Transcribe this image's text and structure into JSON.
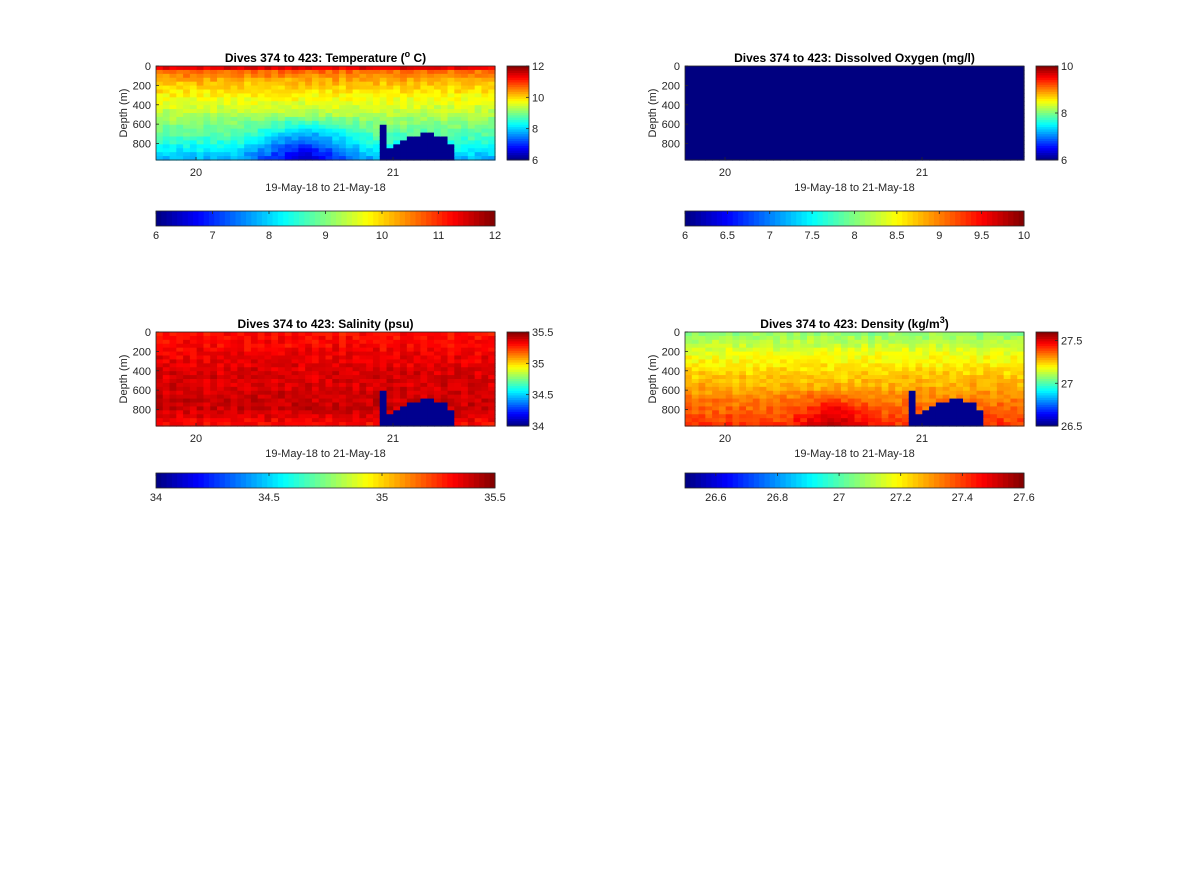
{
  "figure": {
    "panels": [
      {
        "title": "Dives 374 to 423: Temperature (° C)",
        "title_parts": {
          "pre": "Dives 374 to 423: Temperature (",
          "sup": "o",
          "post": " C)"
        },
        "ylabel": "Depth (m)",
        "yticks": [
          "0",
          "200",
          "400",
          "600",
          "800"
        ],
        "xticks": [
          "20",
          "21"
        ],
        "xlabel": "19-May-18 to 21-May-18",
        "cbar_ticks": [
          "12",
          "10",
          "8",
          "6"
        ],
        "hbar_ticks": [
          "6",
          "7",
          "8",
          "9",
          "10",
          "11",
          "12"
        ]
      },
      {
        "title": "Dives 374 to 423: Dissolved Oxygen (mg/l)",
        "title_parts": {
          "pre": "Dives 374 to 423: Dissolved Oxygen (mg/l)",
          "sup": "",
          "post": ""
        },
        "ylabel": "Depth (m)",
        "yticks": [
          "0",
          "200",
          "400",
          "600",
          "800"
        ],
        "xticks": [
          "20",
          "21"
        ],
        "xlabel": "19-May-18 to 21-May-18",
        "cbar_ticks": [
          "10",
          "8",
          "6"
        ],
        "hbar_ticks": [
          "6",
          "6.5",
          "7",
          "7.5",
          "8",
          "8.5",
          "9",
          "9.5",
          "10"
        ]
      },
      {
        "title": "Dives 374 to 423: Salinity (psu)",
        "title_parts": {
          "pre": "Dives 374 to 423: Salinity (psu)",
          "sup": "",
          "post": ""
        },
        "ylabel": "Depth (m)",
        "yticks": [
          "0",
          "200",
          "400",
          "600",
          "800"
        ],
        "xticks": [
          "20",
          "21"
        ],
        "xlabel": "19-May-18 to 21-May-18",
        "cbar_ticks": [
          "35.5",
          "35",
          "34.5",
          "34"
        ],
        "hbar_ticks": [
          "34",
          "34.5",
          "35",
          "35.5"
        ]
      },
      {
        "title": "Dives 374 to 423: Density (kg/m3)",
        "title_parts": {
          "pre": "Dives 374 to 423: Density (kg/m",
          "sup": "3",
          "post": ")"
        },
        "ylabel": "Depth (m)",
        "yticks": [
          "0",
          "200",
          "400",
          "600",
          "800"
        ],
        "xticks": [
          "20",
          "21"
        ],
        "xlabel": "19-May-18 to 21-May-18",
        "cbar_ticks": [
          "27.5",
          "27",
          "26.5"
        ],
        "hbar_ticks": [
          "26.6",
          "26.8",
          "27",
          "27.2",
          "27.4",
          "27.6"
        ]
      }
    ]
  },
  "chart_data": [
    {
      "type": "heatmap",
      "title": "Dives 374 to 423: Temperature (° C)",
      "xlabel": "19-May-18 to 21-May-18",
      "ylabel": "Depth (m)",
      "y_reversed": true,
      "ylim": [
        0,
        970
      ],
      "xlim_days": [
        19.8,
        21.52
      ],
      "x_ticks": [
        20,
        21
      ],
      "dives": [
        374,
        423
      ],
      "colormap": "jet",
      "clim": [
        6,
        12
      ],
      "colorbar_ticks": [
        6,
        8,
        10,
        12
      ],
      "horizontal_colorbar_ticks": [
        6,
        7,
        8,
        9,
        10,
        11,
        12
      ],
      "depth_profile": [
        {
          "depth": 0,
          "value": 10.8
        },
        {
          "depth": 200,
          "value": 10.0
        },
        {
          "depth": 400,
          "value": 9.5
        },
        {
          "depth": 600,
          "value": 9.0
        },
        {
          "depth": 800,
          "value": 8.4
        },
        {
          "depth": 950,
          "value": 7.8
        }
      ],
      "cold_core": {
        "start_day": 20.2,
        "end_day": 20.9,
        "min_value": 6.3
      },
      "no_data_region": {
        "start_day": 20.94,
        "end_day": 21.31,
        "min_depth": 600
      }
    },
    {
      "type": "heatmap",
      "title": "Dives 374 to 423: Dissolved Oxygen (mg/l)",
      "xlabel": "19-May-18 to 21-May-18",
      "ylabel": "Depth (m)",
      "y_reversed": true,
      "ylim": [
        0,
        970
      ],
      "x_ticks": [
        20,
        21
      ],
      "colormap": "jet",
      "clim": [
        6,
        10
      ],
      "colorbar_ticks": [
        6,
        8,
        10
      ],
      "horizontal_colorbar_ticks": [
        6,
        6.5,
        7,
        7.5,
        8,
        8.5,
        9,
        9.5,
        10
      ],
      "uniform_value": 6
    },
    {
      "type": "heatmap",
      "title": "Dives 374 to 423: Salinity (psu)",
      "xlabel": "19-May-18 to 21-May-18",
      "ylabel": "Depth (m)",
      "y_reversed": true,
      "ylim": [
        0,
        970
      ],
      "x_ticks": [
        20,
        21
      ],
      "colormap": "jet",
      "clim": [
        34,
        35.5
      ],
      "colorbar_ticks": [
        34,
        34.5,
        35,
        35.5
      ],
      "horizontal_colorbar_ticks": [
        34,
        34.5,
        35,
        35.5
      ],
      "depth_profile": [
        {
          "depth": 0,
          "value": 35.28
        },
        {
          "depth": 400,
          "value": 35.35
        },
        {
          "depth": 800,
          "value": 35.38
        },
        {
          "depth": 950,
          "value": 35.3
        }
      ],
      "no_data_region": {
        "start_day": 20.94,
        "end_day": 21.31,
        "min_depth": 600
      }
    },
    {
      "type": "heatmap",
      "title": "Dives 374 to 423: Density (kg/m3)",
      "xlabel": "19-May-18 to 21-May-18",
      "ylabel": "Depth (m)",
      "y_reversed": true,
      "ylim": [
        0,
        970
      ],
      "x_ticks": [
        20,
        21
      ],
      "colormap": "jet",
      "clim": [
        26.5,
        27.6
      ],
      "colorbar_ticks": [
        26.5,
        27,
        27.5
      ],
      "horizontal_colorbar_ticks": [
        26.6,
        26.8,
        27,
        27.2,
        27.4,
        27.6
      ],
      "depth_profile": [
        {
          "depth": 0,
          "value": 27.05
        },
        {
          "depth": 200,
          "value": 27.15
        },
        {
          "depth": 500,
          "value": 27.25
        },
        {
          "depth": 800,
          "value": 27.35
        },
        {
          "depth": 950,
          "value": 27.4
        }
      ],
      "dense_core": {
        "start_day": 20.3,
        "end_day": 20.8,
        "max_value": 27.55
      },
      "no_data_region": {
        "start_day": 20.94,
        "end_day": 21.31,
        "min_depth": 600
      }
    }
  ]
}
